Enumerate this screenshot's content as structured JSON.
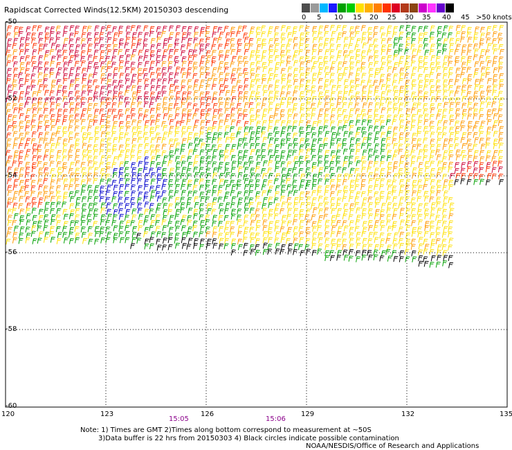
{
  "title": "Rapidscat Corrected Winds(12.5KM) 20150303 descending",
  "legend": {
    "labels": [
      "0",
      "5",
      "10",
      "15",
      "20",
      "25",
      "30",
      "35",
      "40",
      "45",
      ">50 knots"
    ],
    "colors": [
      "#4d4d4d",
      "#9a9a9a",
      "#00b7ff",
      "#1a1aff",
      "#00a000",
      "#00cc00",
      "#ffe000",
      "#ffb000",
      "#ff7f00",
      "#ff3300",
      "#dd0022",
      "#b33a1a",
      "#8b4513",
      "#cc00cc",
      "#ff33ff",
      "#6600cc",
      "#000000"
    ]
  },
  "axes": {
    "lat_labels": [
      "-50",
      "-52",
      "-54",
      "-56",
      "-58",
      "-60"
    ],
    "lon_labels": [
      "120",
      "123",
      "126",
      "129",
      "132",
      "135"
    ]
  },
  "times": [
    "15:05",
    "15:06"
  ],
  "notes": {
    "line1": "Note: 1) Times are GMT 2)Times along bottom correspond to measurement at ~50S",
    "line2": "3)Data buffer is 22 hrs from 20150303 4) Black circles indicate possible contamination",
    "line3": "NOAA/NESDIS/Office of Research and Applications"
  },
  "wind_colors": {
    "calm": "#000000",
    "light": "#0000cc",
    "moderate": "#00a000",
    "fresh": "#ffe000",
    "strong": "#ff9900",
    "gale": "#ff3300",
    "storm": "#cc0033"
  }
}
